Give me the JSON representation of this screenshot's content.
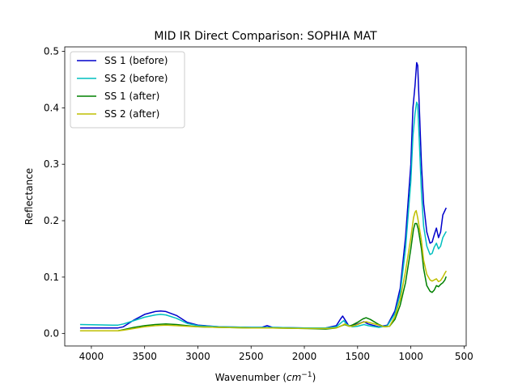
{
  "chart_data": {
    "type": "line",
    "title": "MID IR Direct Comparison: SOPHIA MAT",
    "xlabel_main": "Wavenumber (",
    "xlabel_unit": "cm",
    "xlabel_exp": "−1",
    "xlabel_close": ")",
    "ylabel": "Reflectance",
    "xlim": [
      4250,
      480
    ],
    "ylim": [
      -0.022,
      0.508
    ],
    "x_inverted": true,
    "x_ticks": [
      4000,
      3500,
      3000,
      2500,
      2000,
      1500,
      1000,
      500
    ],
    "x_tick_labels": [
      "4000",
      "3500",
      "3000",
      "2500",
      "2000",
      "1500",
      "1000",
      "500"
    ],
    "y_ticks": [
      0.0,
      0.1,
      0.2,
      0.3,
      0.4,
      0.5
    ],
    "y_tick_labels": [
      "0.0",
      "0.1",
      "0.2",
      "0.3",
      "0.4",
      "0.5"
    ],
    "grid": false,
    "legend_position": "top-left",
    "series": [
      {
        "name": "SS 1 (before)",
        "color": "#0000cc",
        "points": [
          [
            4100,
            0.01
          ],
          [
            3800,
            0.01
          ],
          [
            3750,
            0.01
          ],
          [
            3700,
            0.012
          ],
          [
            3600,
            0.024
          ],
          [
            3500,
            0.034
          ],
          [
            3400,
            0.039
          ],
          [
            3350,
            0.04
          ],
          [
            3300,
            0.039
          ],
          [
            3200,
            0.032
          ],
          [
            3100,
            0.02
          ],
          [
            3000,
            0.015
          ],
          [
            2800,
            0.012
          ],
          [
            2500,
            0.011
          ],
          [
            2400,
            0.011
          ],
          [
            2350,
            0.014
          ],
          [
            2300,
            0.011
          ],
          [
            2000,
            0.01
          ],
          [
            1800,
            0.01
          ],
          [
            1700,
            0.014
          ],
          [
            1660,
            0.026
          ],
          [
            1640,
            0.031
          ],
          [
            1620,
            0.025
          ],
          [
            1580,
            0.013
          ],
          [
            1550,
            0.015
          ],
          [
            1500,
            0.017
          ],
          [
            1440,
            0.021
          ],
          [
            1400,
            0.017
          ],
          [
            1300,
            0.012
          ],
          [
            1220,
            0.015
          ],
          [
            1150,
            0.04
          ],
          [
            1100,
            0.08
          ],
          [
            1050,
            0.17
          ],
          [
            1000,
            0.3
          ],
          [
            980,
            0.4
          ],
          [
            960,
            0.44
          ],
          [
            945,
            0.48
          ],
          [
            935,
            0.475
          ],
          [
            920,
            0.4
          ],
          [
            900,
            0.3
          ],
          [
            880,
            0.23
          ],
          [
            850,
            0.18
          ],
          [
            820,
            0.16
          ],
          [
            800,
            0.162
          ],
          [
            780,
            0.175
          ],
          [
            760,
            0.187
          ],
          [
            740,
            0.17
          ],
          [
            720,
            0.18
          ],
          [
            700,
            0.21
          ],
          [
            680,
            0.218
          ],
          [
            670,
            0.222
          ]
        ]
      },
      {
        "name": "SS 2 (before)",
        "color": "#00bfbf",
        "points": [
          [
            4100,
            0.016
          ],
          [
            3800,
            0.015
          ],
          [
            3750,
            0.015
          ],
          [
            3700,
            0.017
          ],
          [
            3600,
            0.023
          ],
          [
            3500,
            0.029
          ],
          [
            3400,
            0.033
          ],
          [
            3350,
            0.034
          ],
          [
            3300,
            0.033
          ],
          [
            3200,
            0.027
          ],
          [
            3100,
            0.018
          ],
          [
            3000,
            0.014
          ],
          [
            2800,
            0.012
          ],
          [
            2500,
            0.011
          ],
          [
            2400,
            0.011
          ],
          [
            2300,
            0.011
          ],
          [
            2000,
            0.01
          ],
          [
            1800,
            0.01
          ],
          [
            1700,
            0.012
          ],
          [
            1650,
            0.02
          ],
          [
            1630,
            0.023
          ],
          [
            1600,
            0.016
          ],
          [
            1550,
            0.012
          ],
          [
            1500,
            0.013
          ],
          [
            1440,
            0.016
          ],
          [
            1400,
            0.014
          ],
          [
            1300,
            0.011
          ],
          [
            1220,
            0.014
          ],
          [
            1150,
            0.035
          ],
          [
            1100,
            0.07
          ],
          [
            1050,
            0.15
          ],
          [
            1000,
            0.27
          ],
          [
            980,
            0.35
          ],
          [
            960,
            0.39
          ],
          [
            945,
            0.41
          ],
          [
            935,
            0.405
          ],
          [
            920,
            0.34
          ],
          [
            900,
            0.25
          ],
          [
            880,
            0.19
          ],
          [
            850,
            0.155
          ],
          [
            820,
            0.14
          ],
          [
            800,
            0.142
          ],
          [
            780,
            0.153
          ],
          [
            760,
            0.16
          ],
          [
            740,
            0.15
          ],
          [
            720,
            0.155
          ],
          [
            700,
            0.17
          ],
          [
            680,
            0.177
          ],
          [
            670,
            0.18
          ]
        ]
      },
      {
        "name": "SS 1 (after)",
        "color": "#008000",
        "points": [
          [
            4100,
            0.005
          ],
          [
            3800,
            0.005
          ],
          [
            3750,
            0.005
          ],
          [
            3700,
            0.007
          ],
          [
            3600,
            0.011
          ],
          [
            3500,
            0.014
          ],
          [
            3400,
            0.016
          ],
          [
            3300,
            0.017
          ],
          [
            3200,
            0.016
          ],
          [
            3100,
            0.014
          ],
          [
            3000,
            0.012
          ],
          [
            2800,
            0.011
          ],
          [
            2500,
            0.01
          ],
          [
            2300,
            0.01
          ],
          [
            2000,
            0.009
          ],
          [
            1800,
            0.008
          ],
          [
            1700,
            0.01
          ],
          [
            1650,
            0.014
          ],
          [
            1620,
            0.016
          ],
          [
            1580,
            0.013
          ],
          [
            1550,
            0.015
          ],
          [
            1500,
            0.02
          ],
          [
            1450,
            0.026
          ],
          [
            1420,
            0.028
          ],
          [
            1380,
            0.025
          ],
          [
            1300,
            0.016
          ],
          [
            1250,
            0.012
          ],
          [
            1200,
            0.013
          ],
          [
            1150,
            0.025
          ],
          [
            1100,
            0.05
          ],
          [
            1050,
            0.09
          ],
          [
            1000,
            0.15
          ],
          [
            975,
            0.185
          ],
          [
            960,
            0.195
          ],
          [
            945,
            0.195
          ],
          [
            930,
            0.185
          ],
          [
            900,
            0.15
          ],
          [
            880,
            0.115
          ],
          [
            850,
            0.085
          ],
          [
            820,
            0.075
          ],
          [
            800,
            0.073
          ],
          [
            780,
            0.077
          ],
          [
            760,
            0.085
          ],
          [
            740,
            0.083
          ],
          [
            720,
            0.087
          ],
          [
            700,
            0.09
          ],
          [
            680,
            0.095
          ],
          [
            670,
            0.1
          ]
        ]
      },
      {
        "name": "SS 2 (after)",
        "color": "#bfbf00",
        "points": [
          [
            4100,
            0.005
          ],
          [
            3800,
            0.005
          ],
          [
            3750,
            0.005
          ],
          [
            3700,
            0.006
          ],
          [
            3600,
            0.009
          ],
          [
            3500,
            0.012
          ],
          [
            3400,
            0.014
          ],
          [
            3300,
            0.015
          ],
          [
            3200,
            0.014
          ],
          [
            3100,
            0.013
          ],
          [
            3000,
            0.012
          ],
          [
            2800,
            0.011
          ],
          [
            2500,
            0.01
          ],
          [
            2300,
            0.01
          ],
          [
            2000,
            0.009
          ],
          [
            1800,
            0.009
          ],
          [
            1700,
            0.01
          ],
          [
            1650,
            0.014
          ],
          [
            1620,
            0.017
          ],
          [
            1580,
            0.013
          ],
          [
            1550,
            0.013
          ],
          [
            1500,
            0.016
          ],
          [
            1450,
            0.02
          ],
          [
            1420,
            0.021
          ],
          [
            1380,
            0.019
          ],
          [
            1300,
            0.015
          ],
          [
            1250,
            0.012
          ],
          [
            1200,
            0.013
          ],
          [
            1150,
            0.03
          ],
          [
            1100,
            0.06
          ],
          [
            1050,
            0.11
          ],
          [
            1000,
            0.17
          ],
          [
            975,
            0.205
          ],
          [
            960,
            0.215
          ],
          [
            950,
            0.218
          ],
          [
            935,
            0.205
          ],
          [
            900,
            0.165
          ],
          [
            880,
            0.13
          ],
          [
            850,
            0.105
          ],
          [
            820,
            0.095
          ],
          [
            800,
            0.093
          ],
          [
            780,
            0.095
          ],
          [
            760,
            0.097
          ],
          [
            740,
            0.092
          ],
          [
            720,
            0.094
          ],
          [
            700,
            0.1
          ],
          [
            680,
            0.107
          ],
          [
            670,
            0.11
          ]
        ]
      }
    ]
  }
}
